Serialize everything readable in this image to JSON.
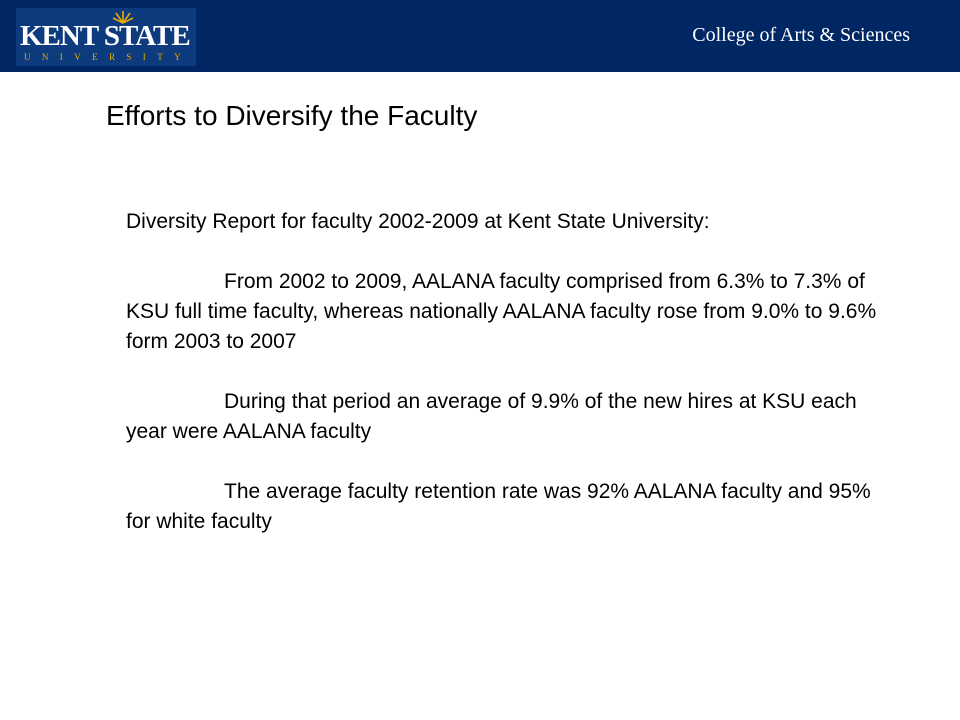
{
  "header": {
    "logo_text": "KENT STATE",
    "logo_subtext": "UNIVERSITY",
    "college": "College of Arts & Sciences",
    "colors": {
      "navy": "#002664",
      "logo_blue": "#0e3a7e",
      "gold": "#eaab00"
    }
  },
  "slide": {
    "title": "Efforts to Diversify the Faculty",
    "intro": "Diversity Report for faculty 2002-2009 at Kent State University:",
    "paragraphs": [
      "From 2002 to 2009, AALANA faculty comprised from 6.3% to 7.3% of KSU full time faculty, whereas nationally AALANA faculty rose from 9.0% to 9.6% form 2003 to 2007",
      "During that period an average of 9.9% of the new hires at KSU each year were AALANA faculty",
      "The average faculty retention rate was 92% AALANA faculty and 95% for white faculty"
    ]
  }
}
